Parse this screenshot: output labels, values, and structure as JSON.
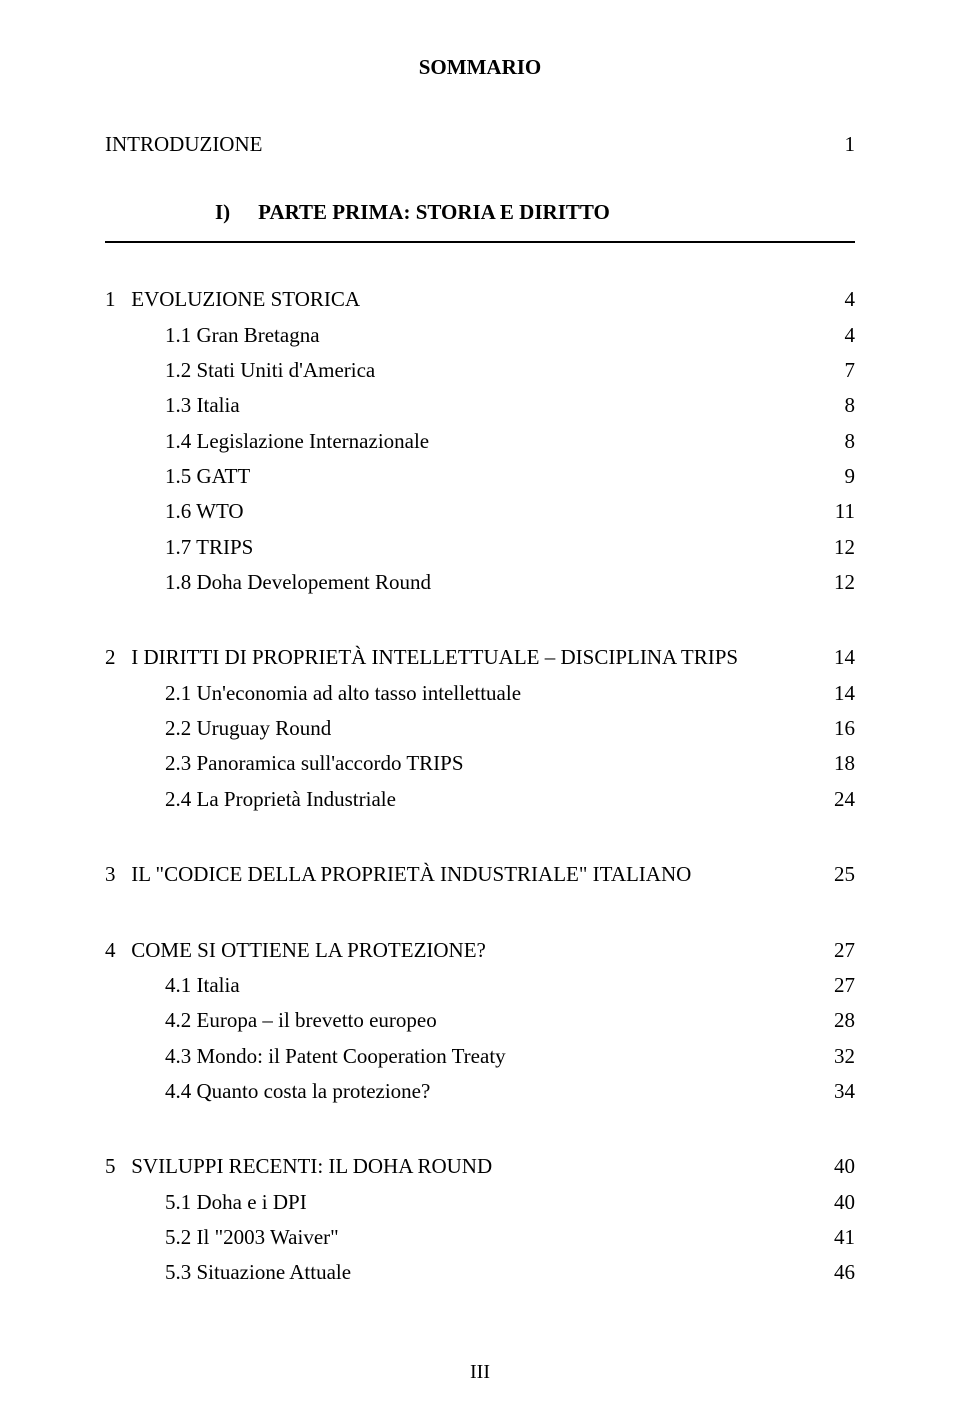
{
  "title": "SOMMARIO",
  "intro": {
    "label": "INTRODUZIONE",
    "page": "1"
  },
  "part": {
    "num": "I)",
    "title": "PARTE PRIMA: STORIA E DIRITTO"
  },
  "s1": {
    "heading": {
      "num": "1",
      "label": "EVOLUZIONE STORICA",
      "page": "4"
    },
    "items": [
      {
        "label": "1.1 Gran Bretagna",
        "page": "4"
      },
      {
        "label": "1.2 Stati Uniti d'America",
        "page": "7"
      },
      {
        "label": "1.3 Italia",
        "page": "8"
      },
      {
        "label": "1.4 Legislazione Internazionale",
        "page": "8"
      },
      {
        "label": "1.5 GATT",
        "page": "9"
      },
      {
        "label": "1.6 WTO",
        "page": "11"
      },
      {
        "label": "1.7 TRIPS",
        "page": "12"
      },
      {
        "label": "1.8 Doha Developement Round",
        "page": "12"
      }
    ]
  },
  "s2": {
    "heading": {
      "num": "2",
      "label": "I DIRITTI DI PROPRIETÀ INTELLETTUALE – DISCIPLINA TRIPS",
      "page": "14"
    },
    "items": [
      {
        "label": "2.1 Un'economia ad alto tasso intellettuale",
        "page": "14"
      },
      {
        "label": "2.2 Uruguay Round",
        "page": "16"
      },
      {
        "label": "2.3 Panoramica sull'accordo TRIPS",
        "page": "18"
      },
      {
        "label": "2.4 La Proprietà Industriale",
        "page": "24"
      }
    ]
  },
  "s3": {
    "heading": {
      "num": "3",
      "label": "IL \"CODICE DELLA PROPRIETÀ INDUSTRIALE\" ITALIANO",
      "page": "25"
    }
  },
  "s4": {
    "heading": {
      "num": "4",
      "label": "COME SI OTTIENE LA PROTEZIONE?",
      "page": "27"
    },
    "items": [
      {
        "label": "4.1 Italia",
        "page": "27"
      },
      {
        "label": "4.2 Europa – il brevetto europeo",
        "page": "28"
      },
      {
        "label": "4.3 Mondo: il Patent Cooperation Treaty",
        "page": "32"
      },
      {
        "label": "4.4 Quanto costa la protezione?",
        "page": "34"
      }
    ]
  },
  "s5": {
    "heading": {
      "num": "5",
      "label": "SVILUPPI RECENTI: IL DOHA ROUND",
      "page": "40"
    },
    "items": [
      {
        "label": "5.1 Doha e i DPI",
        "page": "40"
      },
      {
        "label": "5.2 Il \"2003 Waiver\"",
        "page": "41"
      },
      {
        "label": "5.3 Situazione Attuale",
        "page": "46"
      }
    ]
  },
  "footer": "III"
}
